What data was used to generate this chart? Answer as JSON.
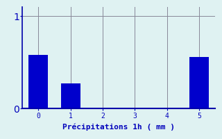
{
  "categories": [
    0,
    1,
    2,
    3,
    4,
    5
  ],
  "values": [
    0.58,
    0.27,
    0.0,
    0.0,
    0.0,
    0.56
  ],
  "bar_color": "#0000cc",
  "bar_width": 0.6,
  "background_color": "#dff2f2",
  "grid_color": "#888899",
  "xlabel": "Précipitations 1h ( mm )",
  "xlabel_color": "#0000bb",
  "xlabel_fontsize": 8,
  "ytick_labels": [
    "0",
    "1"
  ],
  "ytick_values": [
    0,
    1
  ],
  "ylim": [
    0,
    1.1
  ],
  "xlim": [
    -0.5,
    5.5
  ],
  "tick_color": "#0000bb",
  "spine_color": "#0000aa"
}
